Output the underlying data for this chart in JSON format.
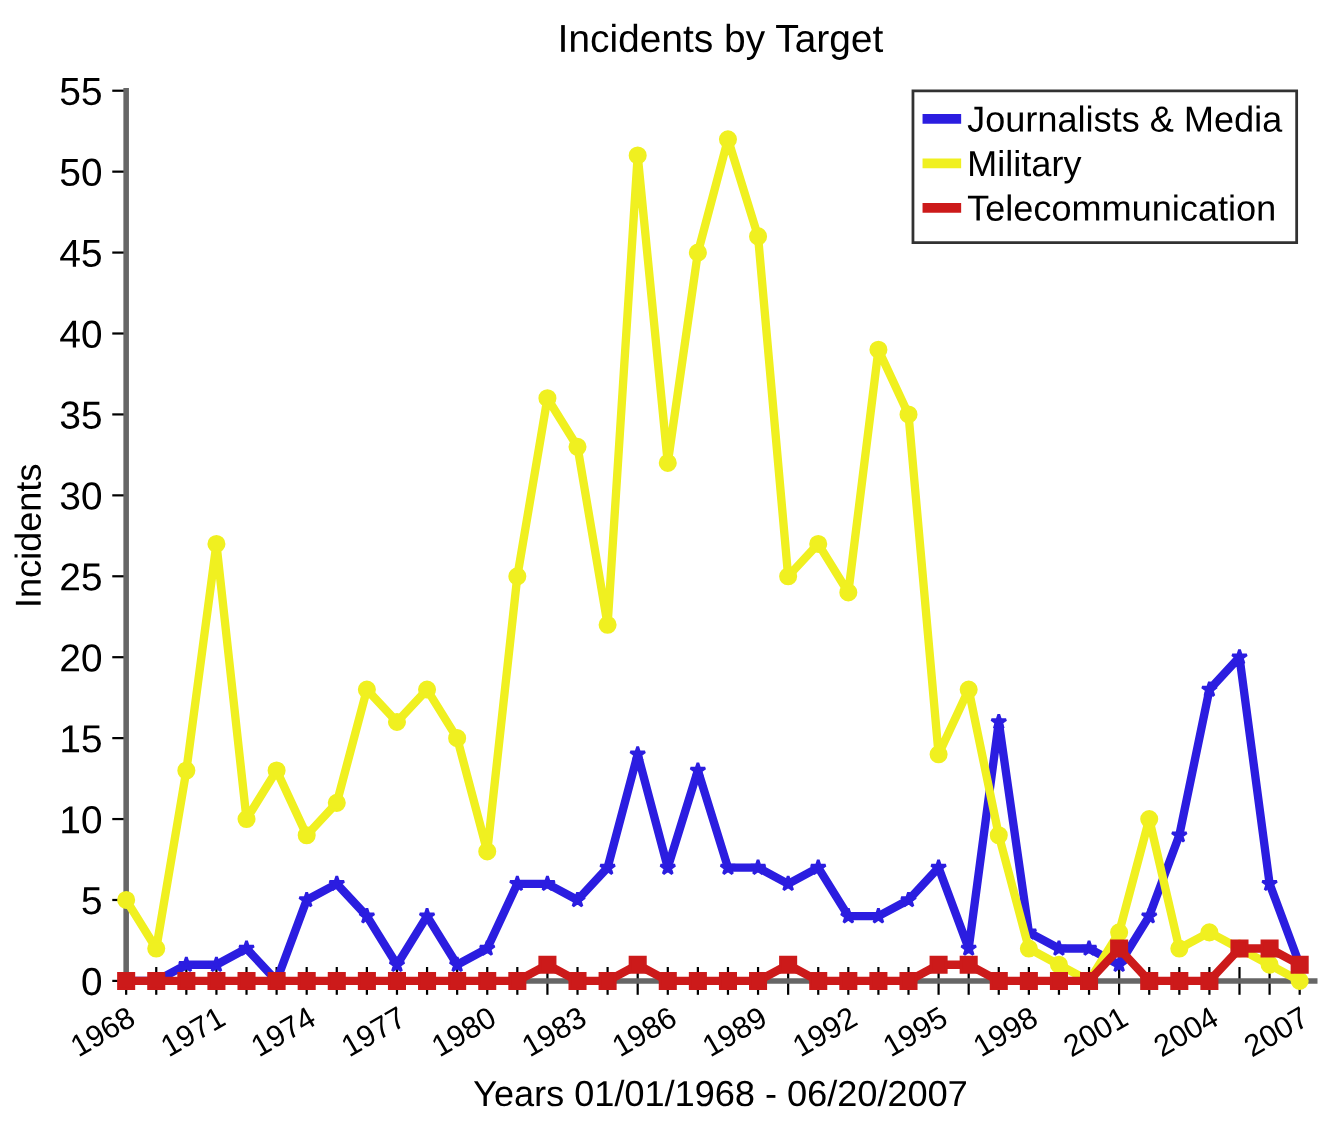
{
  "chart_data": {
    "type": "line",
    "title": "Incidents by Target",
    "xlabel": "Years 01/01/1968 - 06/20/2007",
    "ylabel": "Incidents",
    "x": [
      1968,
      1969,
      1970,
      1971,
      1972,
      1973,
      1974,
      1975,
      1976,
      1977,
      1978,
      1979,
      1980,
      1981,
      1982,
      1983,
      1984,
      1985,
      1986,
      1987,
      1988,
      1989,
      1990,
      1991,
      1992,
      1993,
      1994,
      1995,
      1996,
      1997,
      1998,
      1999,
      2000,
      2001,
      2002,
      2003,
      2004,
      2005,
      2006,
      2007
    ],
    "series": [
      {
        "name": "Journalists & Media",
        "color": "#2b1de0",
        "marker": "star",
        "values": [
          0,
          0,
          1,
          1,
          2,
          0,
          5,
          6,
          4,
          1,
          4,
          1,
          2,
          6,
          6,
          5,
          7,
          14,
          7,
          13,
          7,
          7,
          6,
          7,
          4,
          4,
          5,
          7,
          2,
          16,
          3,
          2,
          2,
          1,
          4,
          9,
          18,
          20,
          6,
          1
        ]
      },
      {
        "name": "Military",
        "color": "#f0f020",
        "marker": "circle",
        "values": [
          5,
          2,
          13,
          27,
          10,
          13,
          9,
          11,
          18,
          16,
          18,
          15,
          8,
          25,
          36,
          33,
          22,
          51,
          32,
          45,
          52,
          46,
          25,
          27,
          24,
          39,
          35,
          14,
          18,
          9,
          2,
          1,
          0,
          3,
          10,
          2,
          3,
          2,
          1,
          0
        ]
      },
      {
        "name": "Telecommunication",
        "color": "#cc1a1a",
        "marker": "square",
        "values": [
          0,
          0,
          0,
          0,
          0,
          0,
          0,
          0,
          0,
          0,
          0,
          0,
          0,
          0,
          1,
          0,
          0,
          1,
          0,
          0,
          0,
          0,
          1,
          0,
          0,
          0,
          0,
          1,
          1,
          0,
          0,
          0,
          0,
          2,
          0,
          0,
          0,
          2,
          2,
          1
        ]
      }
    ],
    "xlim": [
      1968,
      2007.5
    ],
    "ylim": [
      0,
      55
    ],
    "xticks": [
      1968,
      {
        "value": 1969,
        "label": null
      },
      {
        "value": 1970,
        "label": null
      },
      1971,
      {
        "value": 1972,
        "label": null
      },
      {
        "value": 1973,
        "label": null
      },
      1974,
      {
        "value": 1975,
        "label": null
      },
      {
        "value": 1976,
        "label": null
      },
      1977,
      {
        "value": 1978,
        "label": null
      },
      {
        "value": 1979,
        "label": null
      },
      1980,
      {
        "value": 1981,
        "label": null
      },
      {
        "value": 1982,
        "label": null
      },
      1983,
      {
        "value": 1984,
        "label": null
      },
      {
        "value": 1985,
        "label": null
      },
      1986,
      {
        "value": 1987,
        "label": null
      },
      {
        "value": 1988,
        "label": null
      },
      1989,
      {
        "value": 1990,
        "label": null
      },
      {
        "value": 1991,
        "label": null
      },
      1992,
      {
        "value": 1993,
        "label": null
      },
      {
        "value": 1994,
        "label": null
      },
      1995,
      {
        "value": 1996,
        "label": null
      },
      {
        "value": 1997,
        "label": null
      },
      1998,
      {
        "value": 1999,
        "label": null
      },
      {
        "value": 2000,
        "label": null
      },
      2001,
      {
        "value": 2002,
        "label": null
      },
      {
        "value": 2003,
        "label": null
      },
      2004,
      {
        "value": 2005,
        "label": null
      },
      {
        "value": 2006,
        "label": null
      },
      2007
    ],
    "yticks": [
      0,
      5,
      10,
      15,
      20,
      25,
      30,
      35,
      40,
      45,
      50,
      55
    ],
    "grid": false,
    "legend": "top right"
  }
}
